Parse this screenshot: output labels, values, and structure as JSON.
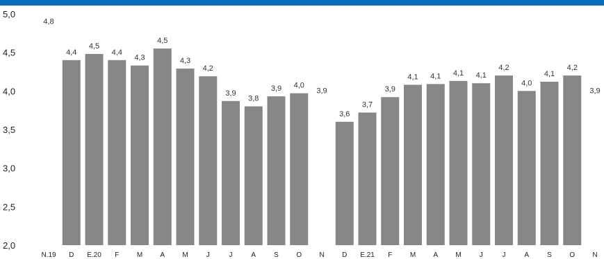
{
  "colors": {
    "top_bar": "#0a6cbf",
    "bar": "#878787",
    "text": "#222222"
  },
  "chart_data": {
    "type": "bar",
    "title": "",
    "xlabel": "",
    "ylabel": "",
    "ylim": [
      2.0,
      5.0
    ],
    "yticks": [
      "2,0",
      "2,5",
      "3,0",
      "3,5",
      "4,0",
      "4,5",
      "5,0"
    ],
    "grid": false,
    "categories": [
      "N.19",
      "D",
      "E.20",
      "F",
      "M",
      "A",
      "M",
      "J",
      "J",
      "A",
      "S",
      "O",
      "N",
      "D",
      "E.21",
      "F",
      "M",
      "A",
      "M",
      "J",
      "J",
      "A",
      "S",
      "O",
      "N"
    ],
    "values": [
      4.8,
      4.4,
      4.48,
      4.4,
      4.33,
      4.55,
      4.29,
      4.19,
      3.87,
      3.8,
      3.93,
      3.97,
      3.9,
      3.6,
      3.72,
      3.92,
      4.08,
      4.09,
      4.13,
      4.1,
      4.2,
      4.0,
      4.12,
      4.2,
      3.9
    ],
    "data_labels": [
      "4,8",
      "4,4",
      "4,5",
      "4,4",
      "4,3",
      "4,5",
      "4,3",
      "4,2",
      "3,9",
      "3,8",
      "3,9",
      "4,0",
      "3,9",
      "3,6",
      "3,7",
      "3,9",
      "4,1",
      "4,1",
      "4,1",
      "4,1",
      "4,2",
      "4,0",
      "4,1",
      "4,2",
      "3,9"
    ],
    "bar_drawn": [
      false,
      true,
      true,
      true,
      true,
      true,
      true,
      true,
      true,
      true,
      true,
      true,
      false,
      true,
      true,
      true,
      true,
      true,
      true,
      true,
      true,
      true,
      true,
      true,
      false
    ]
  }
}
